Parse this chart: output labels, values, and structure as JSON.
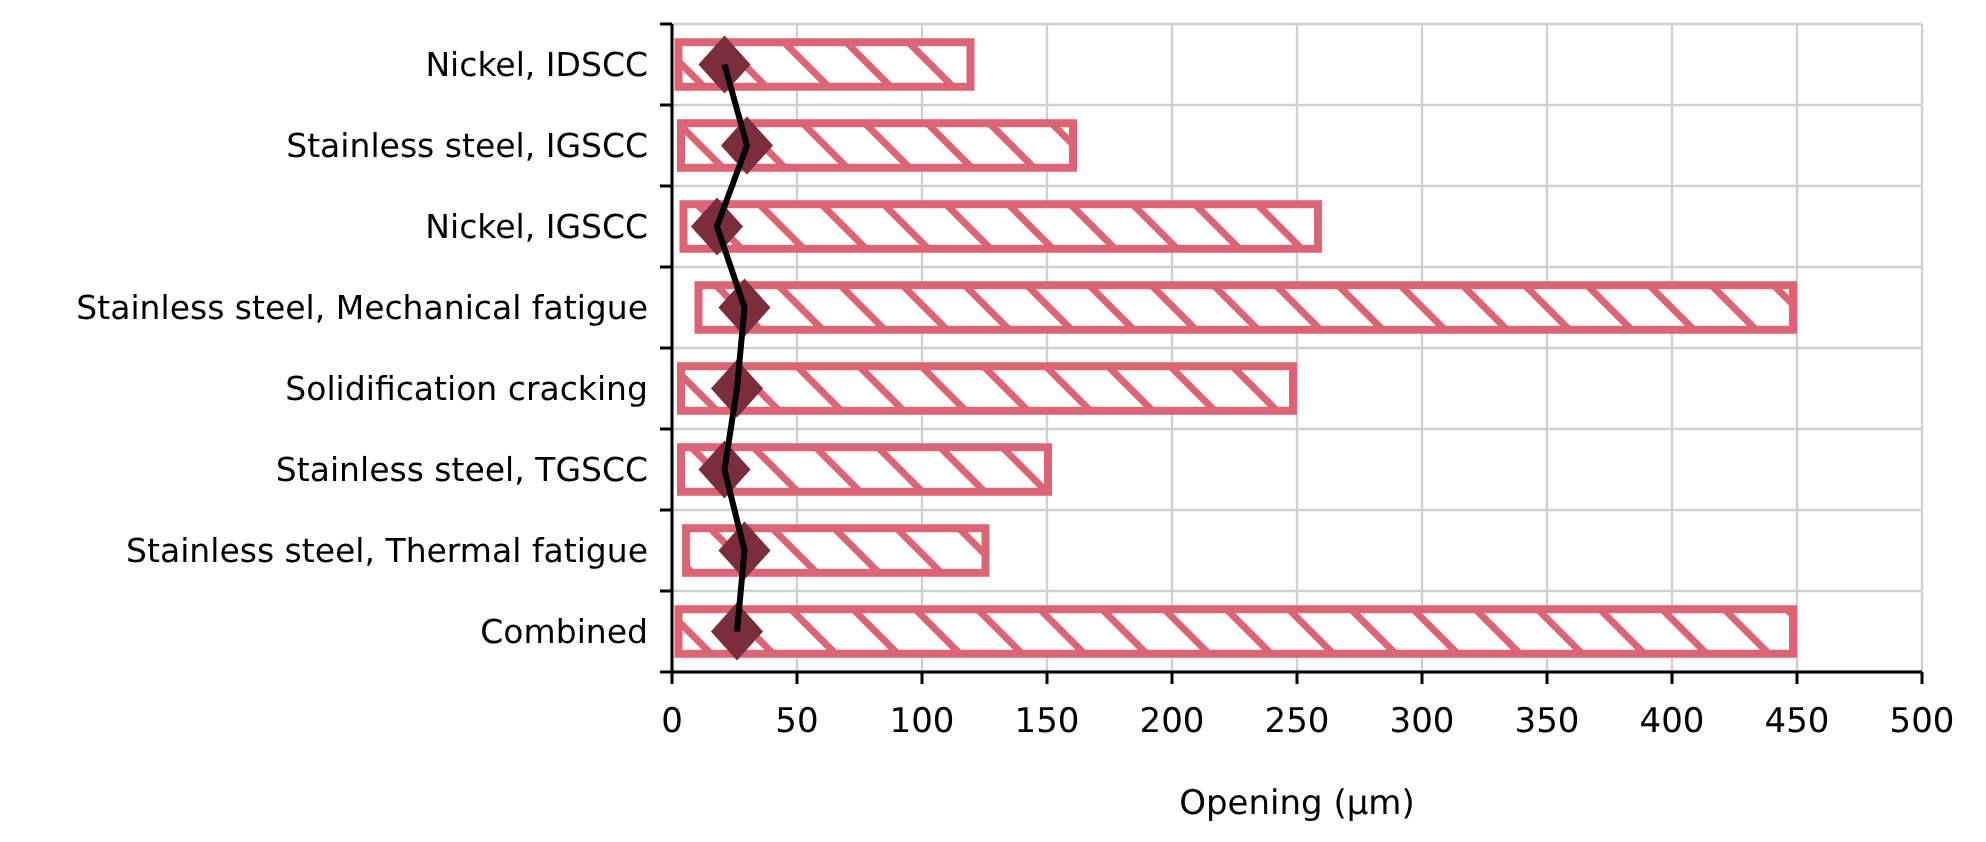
{
  "chart_data": {
    "type": "bar",
    "orientation": "horizontal",
    "xlabel": "Opening (µm)",
    "categories": [
      "Nickel, IDSCC",
      "Stainless steel, IGSCC",
      "Nickel, IGSCC",
      "Stainless steel, Mechanical fatigue",
      "Solidification cracking",
      "Stainless steel, TGSCC",
      "Stainless steel, Thermal fatigue",
      "Combined"
    ],
    "series": [
      {
        "color": "#dc6474",
        "base": [
          1,
          2,
          3,
          9,
          2,
          2,
          4,
          1
        ],
        "values": [
          120,
          160,
          257,
          441,
          248,
          150,
          123,
          449
        ]
      },
      {
        "type": "line",
        "color": "#000000",
        "colors": [
          "#7a2e3b",
          "#7a2e3b",
          "#7a2e3b",
          "#7a2e3b",
          "#7a2e3b",
          "#7a2e3b",
          "#7a2e3b",
          "#7a2e3b"
        ],
        "marker": "diamond",
        "values": [
          21,
          30,
          18,
          29,
          26,
          21,
          29,
          26
        ]
      }
    ],
    "xlim": [
      0,
      500
    ],
    "xticks": [
      0,
      50,
      100,
      150,
      200,
      250,
      300,
      350,
      400,
      450,
      500
    ],
    "grid": true
  }
}
